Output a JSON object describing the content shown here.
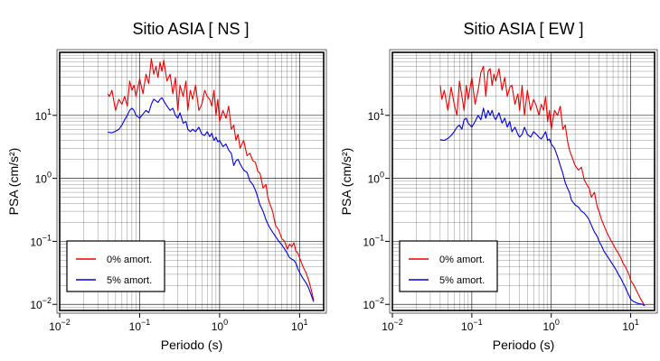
{
  "chart_data": [
    {
      "type": "line",
      "title": "Sitio ASIA [ NS ]",
      "xlabel": "Periodo (s)",
      "ylabel": "PSA (cm/s²)",
      "xscale": "log",
      "yscale": "log",
      "xlim": [
        0.01,
        20
      ],
      "ylim": [
        0.008,
        100
      ],
      "grid": true,
      "legend_position": "bottom-left",
      "x_ticks": [
        {
          "value": 0.01,
          "base": "10",
          "exp": "−2"
        },
        {
          "value": 0.1,
          "base": "10",
          "exp": "−1"
        },
        {
          "value": 1,
          "base": "10",
          "exp": "0"
        },
        {
          "value": 10,
          "base": "10",
          "exp": "1"
        }
      ],
      "y_ticks": [
        {
          "value": 0.01,
          "base": "10",
          "exp": "−2"
        },
        {
          "value": 0.1,
          "base": "10",
          "exp": "−1"
        },
        {
          "value": 1,
          "base": "10",
          "exp": "0"
        },
        {
          "value": 10,
          "base": "10",
          "exp": "1"
        }
      ],
      "series": [
        {
          "name": "0% amort.",
          "color": "#ee0000",
          "x": [
            0.04,
            0.042,
            0.045,
            0.05,
            0.055,
            0.06,
            0.065,
            0.07,
            0.075,
            0.08,
            0.085,
            0.09,
            0.1,
            0.11,
            0.12,
            0.13,
            0.14,
            0.15,
            0.16,
            0.17,
            0.18,
            0.19,
            0.2,
            0.22,
            0.24,
            0.26,
            0.28,
            0.3,
            0.32,
            0.35,
            0.38,
            0.4,
            0.43,
            0.46,
            0.5,
            0.55,
            0.6,
            0.65,
            0.7,
            0.75,
            0.8,
            0.85,
            0.9,
            0.95,
            1.0,
            1.1,
            1.2,
            1.3,
            1.4,
            1.5,
            1.6,
            1.7,
            1.8,
            2.0,
            2.2,
            2.4,
            2.6,
            2.8,
            3.0,
            3.2,
            3.5,
            3.8,
            4.0,
            4.3,
            4.6,
            5.0,
            5.5,
            6.0,
            6.5,
            7.0,
            7.5,
            8.0,
            8.5,
            9.0,
            9.5,
            10,
            11,
            12,
            13,
            14,
            15
          ],
          "y": [
            22,
            20,
            25,
            12,
            18,
            15,
            20,
            14,
            35,
            25,
            30,
            20,
            38,
            22,
            45,
            32,
            80,
            45,
            60,
            40,
            70,
            50,
            75,
            35,
            45,
            22,
            40,
            12,
            30,
            20,
            35,
            12,
            25,
            18,
            30,
            12,
            15,
            25,
            20,
            18,
            14,
            25,
            10,
            18,
            8,
            12,
            9,
            14,
            6,
            7,
            4,
            5,
            3,
            4,
            2.3,
            2.5,
            1.9,
            1.8,
            1.3,
            1.2,
            0.7,
            0.8,
            0.5,
            0.38,
            0.3,
            0.18,
            0.15,
            0.11,
            0.1,
            0.075,
            0.09,
            0.082,
            0.095,
            0.07,
            0.065,
            0.055,
            0.04,
            0.032,
            0.024,
            0.017,
            0.0115
          ]
        },
        {
          "name": "5% amort.",
          "color": "#0000dd",
          "x": [
            0.04,
            0.045,
            0.05,
            0.055,
            0.06,
            0.065,
            0.07,
            0.075,
            0.08,
            0.085,
            0.09,
            0.1,
            0.11,
            0.12,
            0.13,
            0.14,
            0.15,
            0.16,
            0.17,
            0.18,
            0.19,
            0.2,
            0.22,
            0.24,
            0.26,
            0.28,
            0.3,
            0.32,
            0.35,
            0.38,
            0.4,
            0.43,
            0.46,
            0.5,
            0.55,
            0.6,
            0.65,
            0.7,
            0.75,
            0.8,
            0.85,
            0.9,
            0.95,
            1.0,
            1.1,
            1.2,
            1.3,
            1.4,
            1.5,
            1.6,
            1.7,
            1.8,
            2.0,
            2.2,
            2.4,
            2.6,
            2.8,
            3.0,
            3.2,
            3.5,
            3.8,
            4.0,
            4.3,
            4.6,
            5.0,
            5.5,
            6.0,
            6.5,
            7.0,
            7.5,
            8.0,
            8.5,
            9.0,
            9.5,
            10,
            11,
            12,
            13,
            14,
            15
          ],
          "y": [
            5.4,
            5.3,
            5.6,
            6.0,
            7.0,
            8.5,
            10,
            12,
            13,
            12,
            10,
            9,
            10.5,
            12,
            11,
            15,
            18,
            17,
            16,
            18,
            19,
            17,
            14,
            12,
            13,
            10,
            9,
            11,
            7.5,
            8,
            6,
            5.5,
            6,
            5.5,
            6.5,
            5,
            4.8,
            5.5,
            4.6,
            5.2,
            4.0,
            4.5,
            3.8,
            4.0,
            3.2,
            3.5,
            2.8,
            2.5,
            1.6,
            1.9,
            2.0,
            1.7,
            1.35,
            1.25,
            0.9,
            0.8,
            0.65,
            0.5,
            0.38,
            0.3,
            0.22,
            0.19,
            0.16,
            0.14,
            0.12,
            0.1,
            0.088,
            0.075,
            0.065,
            0.055,
            0.052,
            0.05,
            0.045,
            0.037,
            0.032,
            0.026,
            0.022,
            0.018,
            0.014,
            0.011
          ]
        }
      ]
    },
    {
      "type": "line",
      "title": "Sitio ASIA [ EW ]",
      "xlabel": "Periodo (s)",
      "ylabel": "PSA (cm/s²)",
      "xscale": "log",
      "yscale": "log",
      "xlim": [
        0.01,
        20
      ],
      "ylim": [
        0.008,
        100
      ],
      "grid": true,
      "legend_position": "bottom-left",
      "x_ticks": [
        {
          "value": 0.01,
          "base": "10",
          "exp": "−2"
        },
        {
          "value": 0.1,
          "base": "10",
          "exp": "−1"
        },
        {
          "value": 1,
          "base": "10",
          "exp": "0"
        },
        {
          "value": 10,
          "base": "10",
          "exp": "1"
        }
      ],
      "y_ticks": [
        {
          "value": 0.01,
          "base": "10",
          "exp": "−2"
        },
        {
          "value": 0.1,
          "base": "10",
          "exp": "−1"
        },
        {
          "value": 1,
          "base": "10",
          "exp": "0"
        },
        {
          "value": 10,
          "base": "10",
          "exp": "1"
        }
      ],
      "series": [
        {
          "name": "0% amort.",
          "color": "#ee0000",
          "x": [
            0.04,
            0.042,
            0.045,
            0.05,
            0.055,
            0.06,
            0.065,
            0.07,
            0.075,
            0.08,
            0.085,
            0.09,
            0.1,
            0.11,
            0.12,
            0.13,
            0.14,
            0.15,
            0.16,
            0.17,
            0.18,
            0.19,
            0.2,
            0.22,
            0.24,
            0.26,
            0.28,
            0.3,
            0.32,
            0.35,
            0.38,
            0.4,
            0.43,
            0.46,
            0.5,
            0.55,
            0.6,
            0.65,
            0.7,
            0.75,
            0.8,
            0.85,
            0.9,
            0.95,
            1.0,
            1.1,
            1.2,
            1.3,
            1.4,
            1.5,
            1.6,
            1.7,
            1.8,
            2.0,
            2.2,
            2.4,
            2.6,
            2.8,
            3.0,
            3.2,
            3.5,
            3.8,
            4.0,
            4.3,
            4.6,
            5.0,
            5.5,
            6.0,
            6.5,
            7.0,
            7.5,
            8.0,
            8.5,
            9.0,
            9.5,
            10,
            11,
            12,
            13,
            14,
            15
          ],
          "y": [
            30,
            18,
            25,
            12,
            28,
            15,
            10,
            35,
            20,
            12,
            30,
            18,
            40,
            15,
            25,
            48,
            60,
            20,
            50,
            55,
            30,
            45,
            35,
            55,
            25,
            40,
            20,
            28,
            30,
            15,
            22,
            12,
            30,
            10,
            25,
            12,
            18,
            14,
            10,
            15,
            12,
            20,
            8,
            12,
            6,
            12,
            10,
            14,
            6,
            7,
            4,
            2.8,
            2.3,
            1.6,
            1.35,
            1.5,
            0.95,
            0.8,
            0.7,
            0.5,
            0.6,
            0.35,
            0.3,
            0.22,
            0.18,
            0.14,
            0.11,
            0.09,
            0.075,
            0.065,
            0.055,
            0.045,
            0.04,
            0.035,
            0.03,
            0.024,
            0.02,
            0.016,
            0.013,
            0.011,
            0.0095
          ]
        },
        {
          "name": "5% amort.",
          "color": "#0000dd",
          "x": [
            0.04,
            0.045,
            0.05,
            0.055,
            0.06,
            0.065,
            0.07,
            0.075,
            0.08,
            0.085,
            0.09,
            0.1,
            0.11,
            0.12,
            0.13,
            0.14,
            0.15,
            0.16,
            0.17,
            0.18,
            0.19,
            0.2,
            0.22,
            0.24,
            0.26,
            0.28,
            0.3,
            0.32,
            0.35,
            0.38,
            0.4,
            0.43,
            0.46,
            0.5,
            0.55,
            0.6,
            0.65,
            0.7,
            0.75,
            0.8,
            0.85,
            0.9,
            0.95,
            1.0,
            1.1,
            1.2,
            1.3,
            1.4,
            1.5,
            1.6,
            1.7,
            1.8,
            2.0,
            2.2,
            2.4,
            2.6,
            2.8,
            3.0,
            3.2,
            3.5,
            3.8,
            4.0,
            4.3,
            4.6,
            5.0,
            5.5,
            6.0,
            6.5,
            7.0,
            7.5,
            8.0,
            8.5,
            9.0,
            9.5,
            10,
            11,
            12,
            13,
            14,
            15
          ],
          "y": [
            4.1,
            4.0,
            4.3,
            4.8,
            5.5,
            6.5,
            7.0,
            6.0,
            8.5,
            9.0,
            7.5,
            6.5,
            8.0,
            10,
            8.5,
            13,
            9.0,
            12,
            10,
            12,
            9.5,
            8.5,
            11,
            7.5,
            9,
            6.5,
            8,
            5.5,
            6.5,
            5,
            4.5,
            5,
            6.5,
            5,
            4.5,
            5.5,
            5,
            4.5,
            4.2,
            4.8,
            5.5,
            4.0,
            4.2,
            3.5,
            3.0,
            2.2,
            1.6,
            1.2,
            0.85,
            0.7,
            0.6,
            0.45,
            0.38,
            0.35,
            0.3,
            0.28,
            0.25,
            0.22,
            0.18,
            0.14,
            0.12,
            0.1,
            0.085,
            0.07,
            0.06,
            0.05,
            0.042,
            0.036,
            0.03,
            0.026,
            0.022,
            0.019,
            0.016,
            0.014,
            0.012,
            0.011,
            0.0105,
            0.0102,
            0.01,
            0.0095
          ]
        }
      ]
    }
  ]
}
